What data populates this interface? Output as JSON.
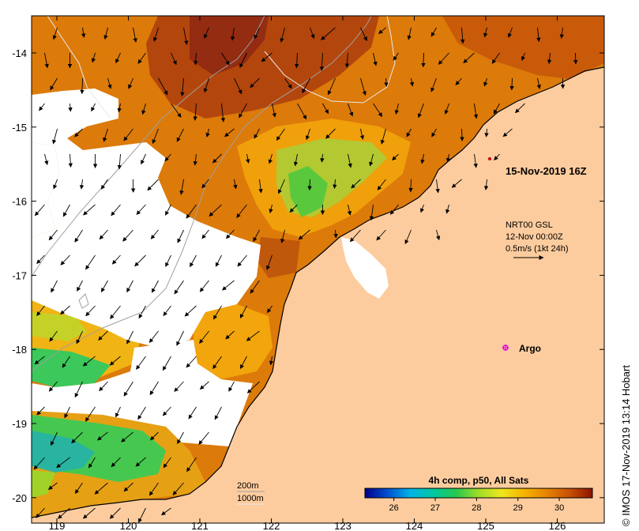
{
  "map": {
    "timestamp": "15-Nov-2019 16Z",
    "current_source": {
      "line1": "NRT00 GSL",
      "line2": "12-Nov 00:00Z",
      "line3": "0.5m/s (1kt 24h)"
    },
    "float_label": "Argo",
    "contours": {
      "shallow": "200m",
      "deep": "1000m"
    },
    "colorbar": {
      "title": "4h comp, p50, All Sats",
      "ticks": [
        "26",
        "27",
        "28",
        "29",
        "30"
      ],
      "range": [
        25.3,
        30.8
      ],
      "colors": [
        "#00008c",
        "#0050d0",
        "#00b4e6",
        "#00c8a0",
        "#28c850",
        "#a0dc28",
        "#f0e61e",
        "#f5b400",
        "#e68200",
        "#c85000",
        "#8c1400"
      ]
    },
    "lon_ticks": [
      "119",
      "120",
      "121",
      "122",
      "123",
      "124",
      "125",
      "126"
    ],
    "lat_ticks": [
      "-14",
      "-15",
      "-16",
      "-17",
      "-18",
      "-19",
      "-20"
    ],
    "credit": "© IMOS 17-Nov-2019 13:14 Hobart",
    "land_color": "#fdcc9e"
  }
}
